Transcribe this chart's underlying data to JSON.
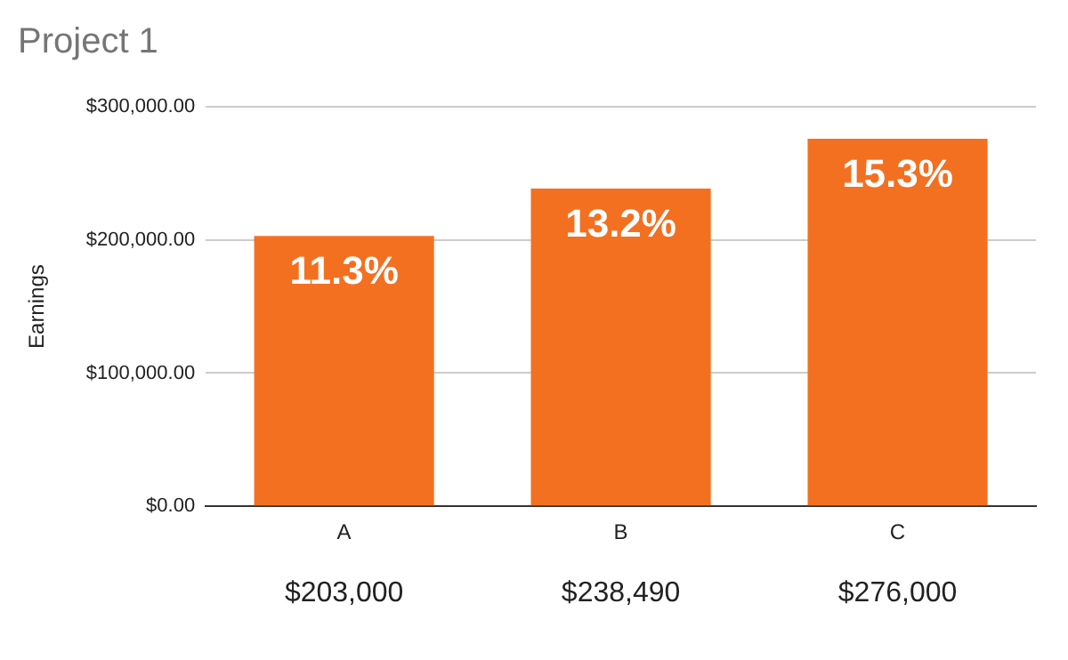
{
  "chart_data": {
    "type": "bar",
    "title": "Project 1",
    "ylabel": "Earnings",
    "categories": [
      "A",
      "B",
      "C"
    ],
    "values": [
      203000,
      238490,
      276000
    ],
    "value_labels": [
      "$203,000",
      "$238,490",
      "$276,000"
    ],
    "color": "#f37021",
    "ylim": [
      0,
      300000
    ],
    "yticks": [
      {
        "value": 0,
        "label": "$0.00"
      },
      {
        "value": 100000,
        "label": "$100,000.00"
      },
      {
        "value": 200000,
        "label": "$200,000.00"
      },
      {
        "value": 300000,
        "label": "$300,000.00"
      }
    ],
    "grid": "y",
    "legend": false,
    "annotations": [
      {
        "text": "11.3%",
        "x": "A",
        "y": 203000
      },
      {
        "text": "13.2%",
        "x": "B",
        "y": 238490
      },
      {
        "text": "15.3%",
        "x": "C",
        "y": 276000
      }
    ]
  }
}
